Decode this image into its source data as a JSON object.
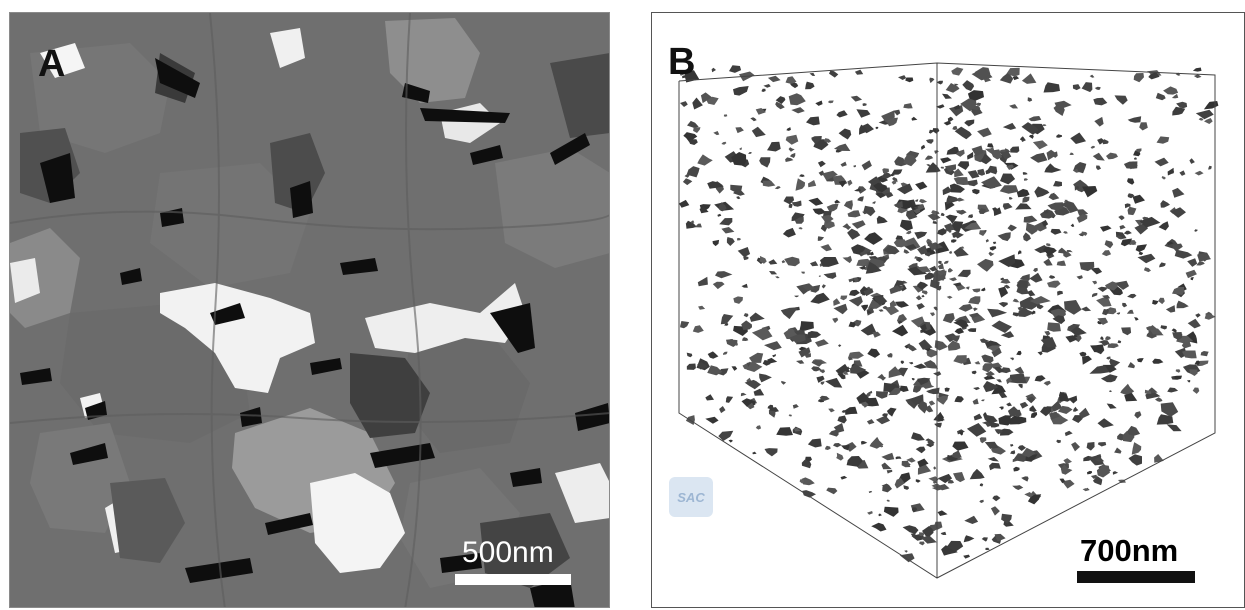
{
  "panels": {
    "a": {
      "label": "A",
      "scale_bar": "500nm"
    },
    "b": {
      "label": "B",
      "scale_bar": "700nm",
      "watermark": "SAC"
    }
  },
  "colors": {
    "grain_mid": "#727272",
    "grain_light": "#9a9a9a",
    "grain_white": "#f4f4f4",
    "grain_dark": "#3c3c3c",
    "pore_black": "#0d0d0d",
    "rendering_gray": "#4a4a4a"
  }
}
